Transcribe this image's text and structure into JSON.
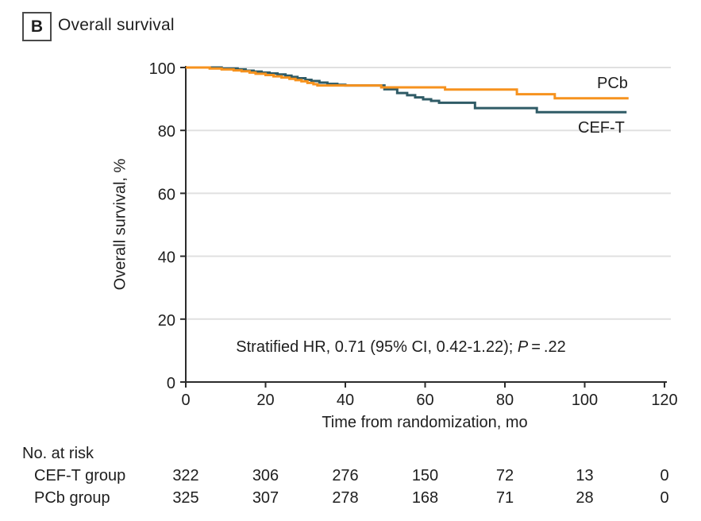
{
  "panel": {
    "label": "B",
    "title": "Overall survival"
  },
  "colors": {
    "pcb_orange": "#F6921E",
    "ceft_teal": "#2F5B66",
    "grid": "#E0E0E0",
    "axis": "#2B2B2B",
    "text": "#1E1E1E"
  },
  "chart_data": {
    "type": "line",
    "subtype": "kaplan-meier-step",
    "title": "Overall survival",
    "xlabel": "Time from randomization, mo",
    "ylabel": "Overall survival, %",
    "xlim": [
      0,
      120
    ],
    "ylim": [
      0,
      100
    ],
    "x_ticks": [
      0,
      20,
      40,
      60,
      80,
      100,
      120
    ],
    "y_ticks": [
      0,
      20,
      40,
      60,
      80,
      100
    ],
    "grid": "horizontal",
    "legend_position": "end-of-line-labels",
    "annotation": {
      "full_text": "Stratified HR, 0.71 (95% CI, 0.42-1.22); P = .22",
      "text_before_p": "Stratified HR, 0.71 (95% CI, 0.42-1.22); ",
      "p_symbol": "P",
      "p_after": " = .22"
    },
    "series": [
      {
        "name": "CEF-T",
        "color": "#2F5B66",
        "points": [
          [
            0,
            100
          ],
          [
            9,
            99.7
          ],
          [
            13,
            99.4
          ],
          [
            15,
            99.0
          ],
          [
            17,
            98.7
          ],
          [
            19,
            98.4
          ],
          [
            21,
            98.1
          ],
          [
            23,
            97.8
          ],
          [
            25,
            97.4
          ],
          [
            26.5,
            97.0
          ],
          [
            28,
            96.6
          ],
          [
            30,
            96.1
          ],
          [
            31.5,
            95.7
          ],
          [
            33.5,
            95.2
          ],
          [
            35.5,
            94.8
          ],
          [
            38,
            94.5
          ],
          [
            40,
            94.3
          ],
          [
            49.8,
            93.1
          ],
          [
            53,
            91.9
          ],
          [
            55.5,
            91.2
          ],
          [
            57.5,
            90.5
          ],
          [
            59.5,
            89.9
          ],
          [
            61.5,
            89.4
          ],
          [
            63.5,
            88.8
          ],
          [
            72.5,
            87.1
          ],
          [
            88,
            85.8
          ],
          [
            110.5,
            85.8
          ]
        ]
      },
      {
        "name": "PCb",
        "color": "#F6921E",
        "points": [
          [
            0,
            100
          ],
          [
            6,
            99.7
          ],
          [
            9,
            99.4
          ],
          [
            12,
            99.1
          ],
          [
            14,
            98.8
          ],
          [
            16,
            98.4
          ],
          [
            17.5,
            98.0
          ],
          [
            20,
            97.6
          ],
          [
            22,
            97.2
          ],
          [
            24,
            96.8
          ],
          [
            26,
            96.4
          ],
          [
            27.5,
            96.0
          ],
          [
            29,
            95.6
          ],
          [
            30.5,
            95.1
          ],
          [
            32,
            94.7
          ],
          [
            33,
            94.3
          ],
          [
            49,
            93.7
          ],
          [
            65,
            93.0
          ],
          [
            83,
            91.5
          ],
          [
            92.5,
            90.2
          ],
          [
            111,
            90.2
          ]
        ]
      }
    ]
  },
  "risk_table": {
    "title": "No. at risk",
    "times": [
      0,
      20,
      40,
      60,
      80,
      100,
      120
    ],
    "rows": [
      {
        "label": "CEF-T group",
        "values": [
          "322",
          "306",
          "276",
          "150",
          "72",
          "13",
          "0"
        ]
      },
      {
        "label": "PCb group",
        "values": [
          "325",
          "307",
          "278",
          "168",
          "71",
          "28",
          "0"
        ]
      }
    ]
  }
}
